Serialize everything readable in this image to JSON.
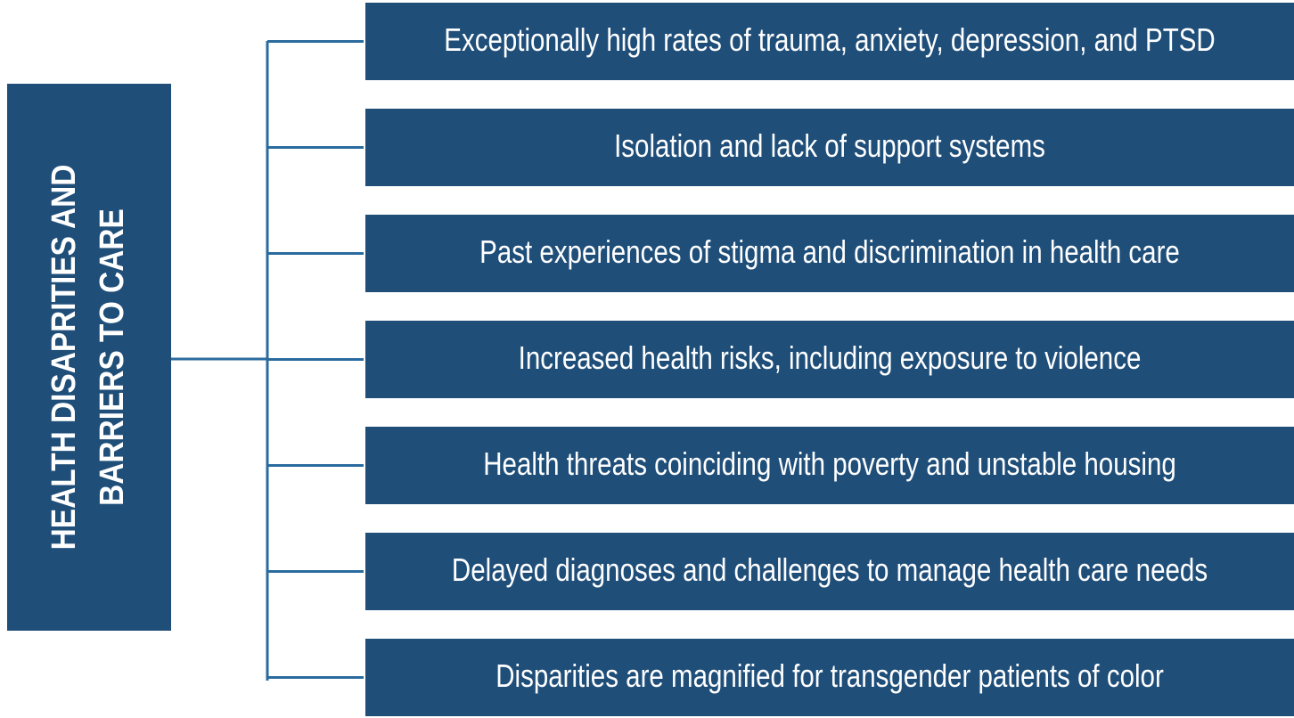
{
  "title": {
    "line1": "HEALTH DISAPRITIES AND",
    "line2": "BARRIERS TO CARE"
  },
  "items": [
    "Exceptionally high rates of trauma, anxiety, depression, and PTSD",
    "Isolation and lack of support systems",
    "Past experiences of stigma and discrimination in health care",
    "Increased health risks, including exposure to violence",
    "Health threats coinciding with poverty and unstable housing",
    "Delayed diagnoses and challenges to manage health care needs",
    "Disparities are magnified for transgender patients of color"
  ]
}
